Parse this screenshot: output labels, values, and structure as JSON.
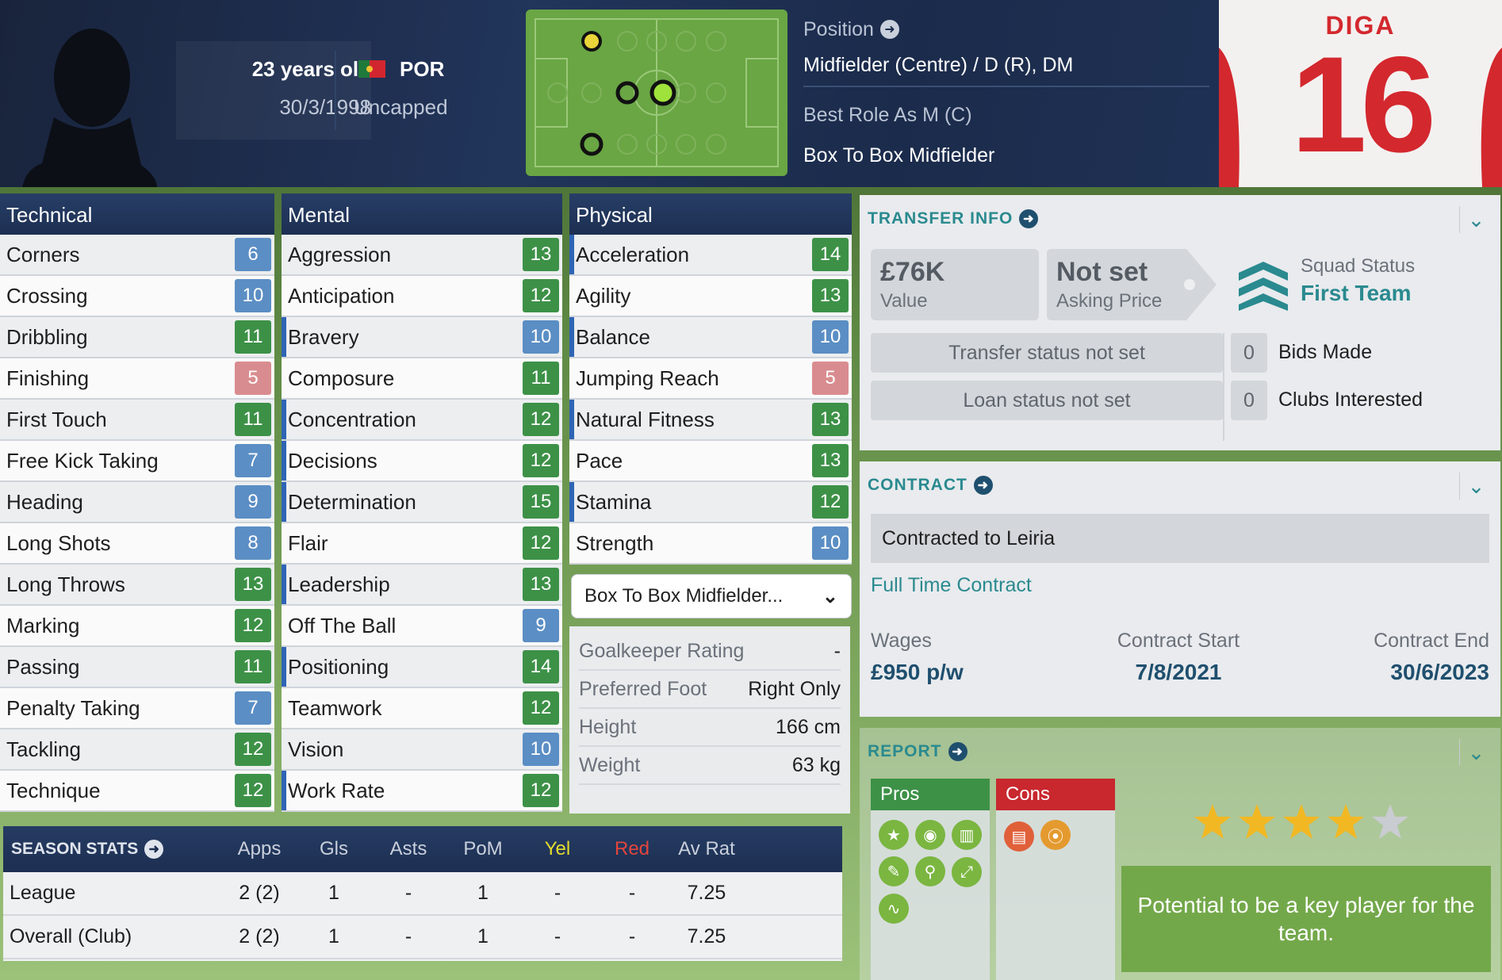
{
  "header": {
    "age": "23 years old",
    "dob": "30/3/1998",
    "nation": "POR",
    "caps": "Uncapped",
    "position_label": "Position",
    "position_value": "Midfielder (Centre) / D (R), DM",
    "best_role": "Best Role As M (C)",
    "role_name": "Box To Box Midfielder",
    "shirt_name": "DIGA",
    "shirt_number": "16",
    "colors": {
      "shirt_red": "#d3282e",
      "pitch": "#6aa644",
      "header_navy": "#1b2b4b"
    }
  },
  "technical": {
    "title": "Technical",
    "rows": [
      {
        "name": "Corners",
        "value": "6"
      },
      {
        "name": "Crossing",
        "value": "10"
      },
      {
        "name": "Dribbling",
        "value": "11"
      },
      {
        "name": "Finishing",
        "value": "5"
      },
      {
        "name": "First Touch",
        "value": "11"
      },
      {
        "name": "Free Kick Taking",
        "value": "7"
      },
      {
        "name": "Heading",
        "value": "9"
      },
      {
        "name": "Long Shots",
        "value": "8"
      },
      {
        "name": "Long Throws",
        "value": "13"
      },
      {
        "name": "Marking",
        "value": "12"
      },
      {
        "name": "Passing",
        "value": "11"
      },
      {
        "name": "Penalty Taking",
        "value": "7"
      },
      {
        "name": "Tackling",
        "value": "12"
      },
      {
        "name": "Technique",
        "value": "12"
      }
    ]
  },
  "mental": {
    "title": "Mental",
    "rows": [
      {
        "name": "Aggression",
        "value": "13"
      },
      {
        "name": "Anticipation",
        "value": "12"
      },
      {
        "name": "Bravery",
        "value": "10"
      },
      {
        "name": "Composure",
        "value": "11"
      },
      {
        "name": "Concentration",
        "value": "12"
      },
      {
        "name": "Decisions",
        "value": "12"
      },
      {
        "name": "Determination",
        "value": "15"
      },
      {
        "name": "Flair",
        "value": "12"
      },
      {
        "name": "Leadership",
        "value": "13"
      },
      {
        "name": "Off The Ball",
        "value": "9"
      },
      {
        "name": "Positioning",
        "value": "14"
      },
      {
        "name": "Teamwork",
        "value": "12"
      },
      {
        "name": "Vision",
        "value": "10"
      },
      {
        "name": "Work Rate",
        "value": "12"
      }
    ]
  },
  "physical": {
    "title": "Physical",
    "rows": [
      {
        "name": "Acceleration",
        "value": "14"
      },
      {
        "name": "Agility",
        "value": "13"
      },
      {
        "name": "Balance",
        "value": "10"
      },
      {
        "name": "Jumping Reach",
        "value": "5"
      },
      {
        "name": "Natural Fitness",
        "value": "13"
      },
      {
        "name": "Pace",
        "value": "13"
      },
      {
        "name": "Stamina",
        "value": "12"
      },
      {
        "name": "Strength",
        "value": "10"
      }
    ],
    "role_dropdown": "Box To Box Midfielder...",
    "info": [
      {
        "k": "Goalkeeper Rating",
        "v": "-"
      },
      {
        "k": "Preferred Foot",
        "v": "Right Only"
      },
      {
        "k": "Height",
        "v": "166 cm"
      },
      {
        "k": "Weight",
        "v": "63 kg"
      }
    ]
  },
  "season_stats": {
    "title": "SEASON STATS",
    "columns": [
      "Apps",
      "Gls",
      "Asts",
      "PoM",
      "Yel",
      "Red",
      "Av Rat"
    ],
    "rows": [
      {
        "label": "League",
        "cells": [
          "2 (2)",
          "1",
          "-",
          "1",
          "-",
          "-",
          "7.25"
        ]
      },
      {
        "label": "Overall (Club)",
        "cells": [
          "2 (2)",
          "1",
          "-",
          "1",
          "-",
          "-",
          "7.25"
        ]
      }
    ]
  },
  "transfer": {
    "title": "TRANSFER INFO",
    "value": "£76K",
    "value_label": "Value",
    "asking": "Not set",
    "asking_label": "Asking Price",
    "squad_label": "Squad Status",
    "squad_value": "First Team",
    "transfer_status": "Transfer status not set",
    "loan_status": "Loan status not set",
    "bids_count": "0",
    "bids_label": "Bids Made",
    "clubs_count": "0",
    "clubs_label": "Clubs Interested"
  },
  "contract": {
    "title": "CONTRACT",
    "contracted_to": "Contracted to Leiria",
    "type": "Full Time Contract",
    "wages_label": "Wages",
    "wages": "£950 p/w",
    "start_label": "Contract Start",
    "start": "7/8/2021",
    "end_label": "Contract End",
    "end": "30/6/2023"
  },
  "report": {
    "title": "REPORT",
    "pros": "Pros",
    "cons": "Cons",
    "stars": 4,
    "stars_max": 5,
    "summary": "Potential to be a key player for the team."
  }
}
